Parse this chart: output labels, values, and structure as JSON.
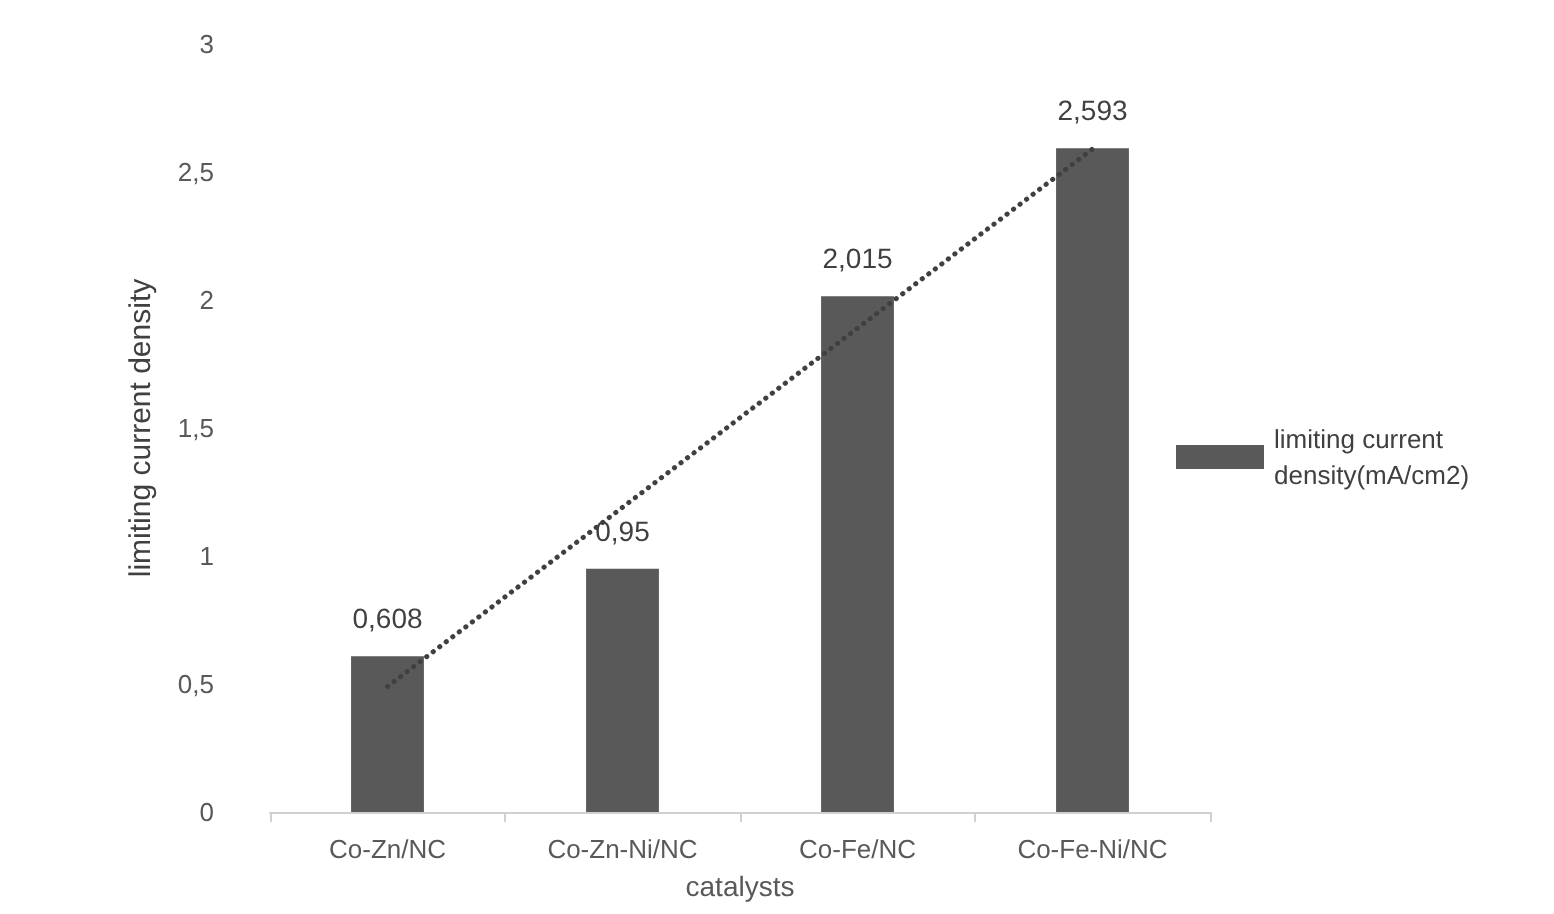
{
  "chart_data": {
    "type": "bar",
    "xlabel": "catalysts",
    "ylabel": "limiting current density",
    "categories": [
      "Co-Zn/NC",
      "Co-Zn-Ni/NC",
      "Co-Fe/NC",
      "Co-Fe-Ni/NC"
    ],
    "series": [
      {
        "name": "limiting current density(mA/cm2)",
        "color": "#595959",
        "values": [
          0.608,
          0.95,
          2.015,
          2.593
        ],
        "value_labels": [
          "0,608",
          "0,95",
          "2,015",
          "2,593"
        ]
      },
      {
        "type": "line",
        "x": [
          "Co-Zn/NC",
          "Co-Fe-Ni/NC"
        ],
        "values": [
          0.49,
          2.59
        ],
        "color": "#404040",
        "line_style": "dotted",
        "marker": "none"
      }
    ],
    "ylim": [
      0,
      3
    ],
    "yticks": [
      {
        "value": 0,
        "label": "0"
      },
      {
        "value": 0.5,
        "label": "0,5"
      },
      {
        "value": 1,
        "label": "1"
      },
      {
        "value": 1.5,
        "label": "1,5"
      },
      {
        "value": 2,
        "label": "2"
      },
      {
        "value": 2.5,
        "label": "2,5"
      },
      {
        "value": 3,
        "label": "3"
      }
    ],
    "grid": false,
    "legend": "right"
  }
}
